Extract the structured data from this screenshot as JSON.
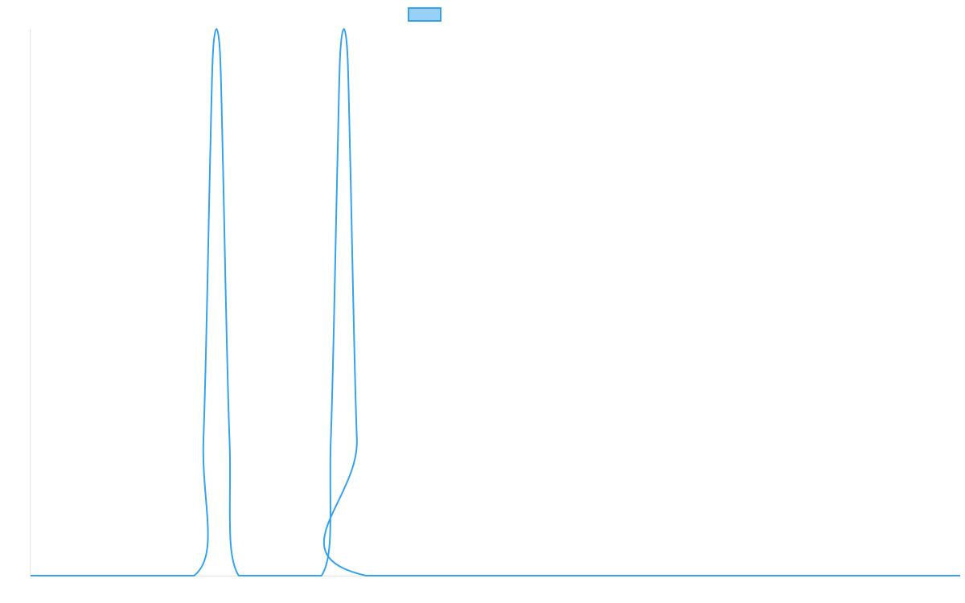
{
  "chart_data": {
    "type": "line",
    "title": "",
    "xlabel": "",
    "ylabel": "",
    "grid": false,
    "legend_position": "top",
    "xlim": [
      0,
      100
    ],
    "ylim": [
      0,
      1
    ],
    "series": [
      {
        "label_text": "",
        "color": "#36a2eb",
        "fill_color": "#9ad0f5",
        "x": [
          0,
          17.6,
          18.6,
          19.3,
          19.6,
          20.0,
          20.4,
          20.7,
          21.4,
          22.4,
          31.3,
          32.3,
          33.0,
          33.3,
          33.7,
          34.1,
          34.4,
          35.1,
          36.1,
          100
        ],
        "y": [
          0,
          0,
          0.25,
          0.75,
          0.95,
          1.0,
          0.95,
          0.75,
          0.25,
          0,
          0,
          0.25,
          0.75,
          0.95,
          1.0,
          0.95,
          0.75,
          0.25,
          0,
          0
        ]
      }
    ]
  }
}
